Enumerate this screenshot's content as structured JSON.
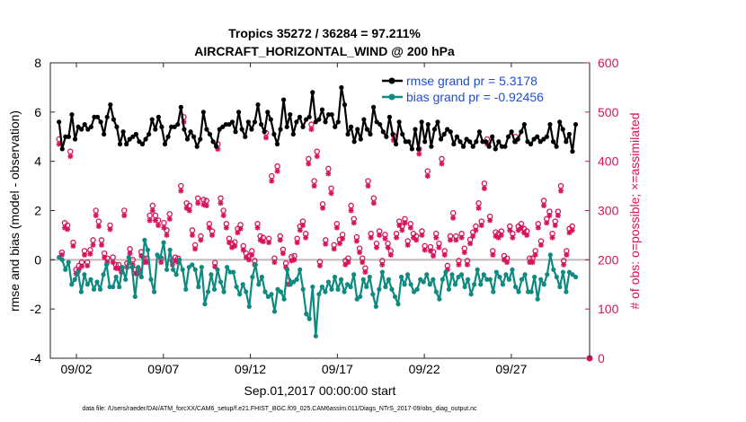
{
  "chart_data": {
    "type": "line",
    "title": "Tropics 35272 / 36284 = 97.211%",
    "subtitle": "AIRCRAFT_HORIZONTAL_WIND @ 200 hPa",
    "xlabel": "Sep.01,2017 00:00:00 start",
    "ylabel_left": "rmse and bias (model - observation)",
    "ylabel_right": "# of obs: o=possible; ×=assimilated",
    "footnote": "data file: /Users/raeder/DAI/ATM_forcXX/CAM6_setup/f.e21.FHIST_BGC.f09_025.CAM6assim.011/Diags_NTrS_2017-09/obs_diag_output.nc",
    "x_range_days": [
      0.5,
      31.5
    ],
    "ylim_left": [
      -4,
      8
    ],
    "ylim_right": [
      0,
      600
    ],
    "xticks": [
      {
        "day": 2,
        "label": "09/02"
      },
      {
        "day": 7,
        "label": "09/07"
      },
      {
        "day": 12,
        "label": "09/12"
      },
      {
        "day": 17,
        "label": "09/17"
      },
      {
        "day": 22,
        "label": "09/22"
      },
      {
        "day": 27,
        "label": "09/27"
      }
    ],
    "yticks_left": [
      "-4",
      "-2",
      "0",
      "2",
      "4",
      "6",
      "8"
    ],
    "yticks_right": [
      "0",
      "100",
      "200",
      "300",
      "400",
      "500",
      "600"
    ],
    "colors": {
      "rmse": "#000000",
      "bias": "#0e8a80",
      "obs": "#d6145c",
      "zero": "#c0b8b8",
      "legend_text": "#1f4fcf"
    },
    "series": [
      {
        "name": "rmse grand pr = 5.3178",
        "key": "rmse",
        "values": [
          5.6,
          4.5,
          5.0,
          5.0,
          5.9,
          4.9,
          5.4,
          5.3,
          5.5,
          5.3,
          5.4,
          5.8,
          5.8,
          5.6,
          5.1,
          5.8,
          6.3,
          5.7,
          5.4,
          4.7,
          5.2,
          4.7,
          4.9,
          5.0,
          5.1,
          4.8,
          4.7,
          4.9,
          5.1,
          5.7,
          5.3,
          5.8,
          5.4,
          4.7,
          5.0,
          5.4,
          5.4,
          5.5,
          6.2,
          5.3,
          4.9,
          5.2,
          5.0,
          4.6,
          4.9,
          6.0,
          5.3,
          5.1,
          4.8,
          4.6,
          5.3,
          5.4,
          5.5,
          5.5,
          5.6,
          5.2,
          6.0,
          5.3,
          5.0,
          5.6,
          5.3,
          5.6,
          6.3,
          5.5,
          5.2,
          6.0,
          5.7,
          5.1,
          4.7,
          5.3,
          6.5,
          5.4,
          5.9,
          5.1,
          5.6,
          5.8,
          5.4,
          5.7,
          5.8,
          6.8,
          5.6,
          5.7,
          6.1,
          5.6,
          5.9,
          5.9,
          5.4,
          5.6,
          7.0,
          6.3,
          5.1,
          5.4,
          4.8,
          5.3,
          4.9,
          5.7,
          5.3,
          5.1,
          6.2,
          5.6,
          5.5,
          5.2,
          5.0,
          5.8,
          5.1,
          4.7,
          5.6,
          5.1,
          4.8,
          4.8,
          4.5,
          5.3,
          4.5,
          5.6,
          4.8,
          5.5,
          4.6,
          5.3,
          5.6,
          4.9,
          5.1,
          5.3,
          5.2,
          4.7,
          5.0,
          4.8,
          4.6,
          4.9,
          4.8,
          4.6,
          4.8,
          5.2,
          4.8,
          4.8,
          4.6,
          5.0,
          4.5,
          4.8,
          4.6,
          4.6,
          5.0,
          5.2,
          4.8,
          4.9,
          5.2,
          5.5,
          4.8,
          4.7,
          4.9,
          5.0,
          4.8,
          4.9,
          5.0,
          5.5,
          4.8,
          4.6,
          5.6,
          5.3,
          4.8,
          5.1,
          4.4,
          5.5
        ]
      },
      {
        "name": "bias grand pr = -0.92456",
        "key": "bias",
        "values": [
          0.1,
          0.0,
          -0.4,
          -0.1,
          -1.0,
          -0.8,
          -0.5,
          -1.3,
          -0.6,
          -1.0,
          -0.8,
          -1.2,
          -0.9,
          -1.2,
          -0.6,
          -0.2,
          -1.1,
          -1.1,
          -0.7,
          -1.1,
          -0.3,
          -0.8,
          0.1,
          -0.3,
          -1.5,
          -0.3,
          -0.7,
          0.8,
          0.4,
          -0.8,
          -1.3,
          0.2,
          0.1,
          0.7,
          -0.4,
          0.4,
          -0.4,
          -0.6,
          0.0,
          -0.4,
          -1.2,
          -0.3,
          -0.2,
          -0.4,
          -1.1,
          -0.3,
          -1.8,
          -1.3,
          -0.6,
          -1.2,
          -0.4,
          -0.9,
          -1.3,
          -0.3,
          -0.5,
          -0.5,
          -1.1,
          -1.4,
          -1.0,
          -1.3,
          -1.9,
          -0.7,
          -0.2,
          -1.0,
          -0.7,
          -1.3,
          -1.5,
          -1.4,
          -2.1,
          -1.2,
          -1.3,
          -1.6,
          -0.4,
          -1.0,
          -0.9,
          -0.8,
          -0.4,
          -1.2,
          -2.2,
          -2.4,
          -1.1,
          -3.1,
          -1.4,
          -1.1,
          -1.3,
          -0.9,
          -1.2,
          -0.7,
          -1.2,
          -0.8,
          -1.3,
          -1.0,
          -1.1,
          -0.6,
          -1.6,
          -1.5,
          -0.8,
          -1.1,
          -0.7,
          -1.4,
          -1.9,
          -1.2,
          -0.5,
          -1.1,
          -0.8,
          -1.2,
          -1.5,
          -1.8,
          -0.7,
          -1.0,
          -0.6,
          -1.0,
          -1.3,
          -1.2,
          -0.8,
          -0.9,
          -0.6,
          -1.0,
          -0.8,
          -1.3,
          -1.6,
          -0.8,
          -0.5,
          -1.2,
          -0.6,
          -1.0,
          -0.7,
          -0.6,
          -1.1,
          -0.8,
          -1.4,
          -1.0,
          -0.4,
          -1.0,
          -0.6,
          -0.8,
          -0.8,
          -1.3,
          -0.5,
          -0.7,
          -1.0,
          -0.6,
          -0.8,
          -0.4,
          -1.1,
          -1.3,
          -0.8,
          -0.6,
          -1.3,
          -1.3,
          -0.7,
          -1.6,
          -0.8,
          -1.0,
          -0.6,
          0.2,
          -0.4,
          -0.7,
          -1.1,
          -0.5,
          -1.3,
          -0.5,
          -0.6,
          -0.7
        ]
      }
    ],
    "obs_assimilated": [
      435,
      210,
      265,
      262,
      410,
      228,
      172,
      180,
      187,
      210,
      188,
      212,
      230,
      290,
      268,
      230,
      205,
      195,
      262,
      195,
      183,
      182,
      175,
      290,
      185,
      213,
      190,
      172,
      172,
      208,
      195,
      195,
      280,
      300,
      280,
      270,
      195,
      265,
      250,
      283,
      190,
      198,
      195,
      340,
      480,
      305,
      300,
      250,
      222,
      315,
      240,
      312,
      310,
      265,
      250,
      186,
      425,
      315,
      290,
      265,
      235,
      225,
      228,
      255,
      263,
      220,
      205,
      200,
      210,
      190,
      265,
      240,
      237,
      448,
      235,
      360,
      195,
      380,
      240,
      213,
      185,
      150,
      198,
      200,
      235,
      260,
      270,
      245,
      395,
      465,
      350,
      410,
      188,
      305,
      232,
      375,
      335,
      222,
      265,
      233,
      243,
      190,
      195,
      300,
      275,
      238,
      215,
      195,
      175,
      350,
      245,
      315,
      225,
      250,
      190,
      243,
      225,
      210,
      443,
      245,
      270,
      260,
      275,
      230,
      265,
      245,
      240,
      415,
      250,
      220,
      370,
      218,
      208,
      245,
      225,
      395,
      210,
      180,
      240,
      285,
      240,
      190,
      245,
      215,
      190,
      233,
      248,
      260,
      305,
      270,
      345,
      435,
      280,
      210,
      248,
      245,
      250,
      200,
      195,
      260,
      245,
      440,
      260,
      265,
      255,
      250,
      195,
      195,
      210,
      265,
      230,
      310,
      275,
      290,
      245,
      270,
      290,
      340,
      190,
      210,
      255,
      260
    ],
    "obs_possible": [
      445,
      215,
      275,
      270,
      420,
      235,
      180,
      188,
      195,
      218,
      195,
      220,
      240,
      300,
      278,
      240,
      213,
      203,
      270,
      205,
      190,
      190,
      183,
      300,
      193,
      222,
      200,
      180,
      180,
      216,
      203,
      203,
      290,
      310,
      290,
      280,
      203,
      275,
      260,
      293,
      198,
      205,
      203,
      350,
      490,
      315,
      310,
      260,
      230,
      325,
      248,
      322,
      320,
      273,
      258,
      194,
      435,
      325,
      300,
      273,
      243,
      233,
      236,
      263,
      271,
      228,
      213,
      208,
      218,
      198,
      273,
      248,
      245,
      458,
      243,
      370,
      203,
      390,
      248,
      221,
      193,
      158,
      206,
      208,
      243,
      268,
      278,
      253,
      405,
      475,
      360,
      420,
      196,
      313,
      240,
      385,
      345,
      230,
      273,
      241,
      251,
      198,
      203,
      310,
      283,
      246,
      223,
      203,
      183,
      360,
      253,
      325,
      233,
      258,
      198,
      251,
      233,
      218,
      453,
      253,
      278,
      268,
      283,
      238,
      273,
      253,
      248,
      425,
      258,
      228,
      380,
      226,
      216,
      253,
      233,
      405,
      218,
      188,
      248,
      295,
      248,
      198,
      253,
      223,
      198,
      241,
      256,
      268,
      315,
      278,
      355,
      445,
      288,
      218,
      256,
      253,
      258,
      208,
      203,
      268,
      253,
      450,
      268,
      273,
      263,
      258,
      203,
      203,
      218,
      273,
      238,
      320,
      283,
      298,
      253,
      278,
      298,
      350,
      198,
      218,
      263,
      268
    ]
  }
}
